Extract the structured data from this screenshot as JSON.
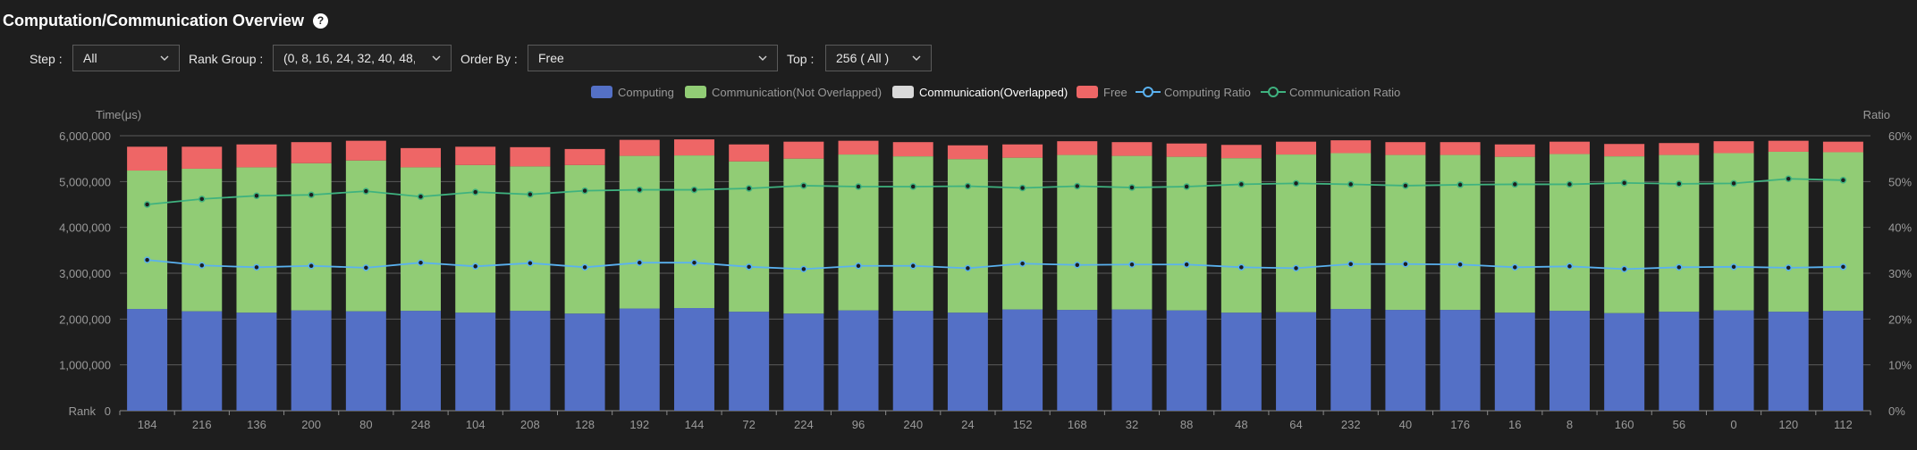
{
  "header": {
    "title": "Computation/Communication Overview",
    "help_glyph": "?"
  },
  "filters": {
    "step": {
      "label": "Step :",
      "value": "All"
    },
    "rank_group": {
      "label": "Rank Group :",
      "value": "(0, 8, 16, 24, 32, 40, 48, ..."
    },
    "order_by": {
      "label": "Order By :",
      "value": "Free"
    },
    "top": {
      "label": "Top :",
      "value": "256 ( All )"
    }
  },
  "legend": {
    "computing": "Computing",
    "comm_not_overlapped": "Communication(Not Overlapped)",
    "comm_overlapped": "Communication(Overlapped)",
    "free": "Free",
    "computing_ratio": "Computing Ratio",
    "communication_ratio": "Communication Ratio"
  },
  "colors": {
    "computing": "#5470c6",
    "comm_not_overlapped": "#91cc75",
    "comm_overlapped": "#d9d9d9",
    "free": "#ee6666",
    "computing_ratio": "#5ab1ef",
    "communication_ratio": "#3fb27f"
  },
  "chart_data": {
    "type": "bar",
    "stacked": true,
    "left_axis_label": "Time(μs)",
    "right_axis_label": "Ratio",
    "x_axis_label": "Rank",
    "y_ticks": [
      "0",
      "1,000,000",
      "2,000,000",
      "3,000,000",
      "4,000,000",
      "5,000,000",
      "6,000,000"
    ],
    "y2_ticks": [
      "0%",
      "10%",
      "20%",
      "30%",
      "40%",
      "50%",
      "60%"
    ],
    "ylim": [
      0,
      6000000
    ],
    "y2lim": [
      0,
      60
    ],
    "grid": true,
    "legend_position": "top-center",
    "categories": [
      "184",
      "216",
      "136",
      "200",
      "80",
      "248",
      "104",
      "208",
      "128",
      "192",
      "144",
      "72",
      "224",
      "96",
      "240",
      "24",
      "152",
      "168",
      "32",
      "88",
      "48",
      "64",
      "232",
      "40",
      "176",
      "16",
      "8",
      "160",
      "56",
      "0",
      "120",
      "112"
    ],
    "series": [
      {
        "name": "Computing",
        "kind": "bar",
        "values": [
          2220000,
          2170000,
          2140000,
          2190000,
          2170000,
          2180000,
          2140000,
          2180000,
          2120000,
          2230000,
          2240000,
          2160000,
          2120000,
          2190000,
          2180000,
          2140000,
          2210000,
          2200000,
          2210000,
          2190000,
          2140000,
          2150000,
          2220000,
          2200000,
          2200000,
          2140000,
          2180000,
          2130000,
          2160000,
          2190000,
          2160000,
          2180000
        ]
      },
      {
        "name": "Communication(Not Overlapped)",
        "kind": "bar",
        "values": [
          3020000,
          3110000,
          3170000,
          3210000,
          3290000,
          3130000,
          3220000,
          3150000,
          3240000,
          3330000,
          3330000,
          3280000,
          3380000,
          3400000,
          3370000,
          3350000,
          3310000,
          3380000,
          3350000,
          3350000,
          3370000,
          3440000,
          3400000,
          3380000,
          3380000,
          3400000,
          3420000,
          3420000,
          3420000,
          3430000,
          3490000,
          3460000
        ]
      },
      {
        "name": "Communication(Overlapped)",
        "kind": "bar",
        "values": [
          0,
          0,
          0,
          0,
          0,
          0,
          0,
          0,
          0,
          0,
          0,
          0,
          0,
          0,
          0,
          0,
          0,
          0,
          0,
          0,
          0,
          0,
          0,
          0,
          0,
          0,
          0,
          0,
          0,
          0,
          0,
          0
        ]
      },
      {
        "name": "Free",
        "kind": "bar",
        "values": [
          520000,
          480000,
          500000,
          460000,
          430000,
          420000,
          400000,
          420000,
          350000,
          350000,
          350000,
          370000,
          370000,
          300000,
          310000,
          300000,
          290000,
          300000,
          300000,
          290000,
          290000,
          280000,
          280000,
          280000,
          280000,
          270000,
          270000,
          270000,
          260000,
          260000,
          240000,
          230000
        ]
      },
      {
        "name": "Computing Ratio",
        "kind": "line",
        "axis": "right",
        "values": [
          32.9,
          31.7,
          31.3,
          31.6,
          31.2,
          32.3,
          31.5,
          32.2,
          31.3,
          32.3,
          32.3,
          31.4,
          30.9,
          31.6,
          31.6,
          31.1,
          32.1,
          31.8,
          31.9,
          31.9,
          31.3,
          31.1,
          32.0,
          32.0,
          31.9,
          31.3,
          31.5,
          30.9,
          31.3,
          31.4,
          31.2,
          31.4
        ]
      },
      {
        "name": "Communication Ratio",
        "kind": "line",
        "axis": "right",
        "values": [
          45.0,
          46.2,
          46.9,
          47.1,
          47.9,
          46.7,
          47.7,
          47.2,
          48.0,
          48.2,
          48.2,
          48.5,
          49.1,
          48.9,
          48.9,
          49.0,
          48.6,
          49.0,
          48.7,
          48.9,
          49.4,
          49.6,
          49.4,
          49.1,
          49.3,
          49.4,
          49.4,
          49.7,
          49.5,
          49.6,
          50.6,
          50.3
        ]
      }
    ]
  }
}
